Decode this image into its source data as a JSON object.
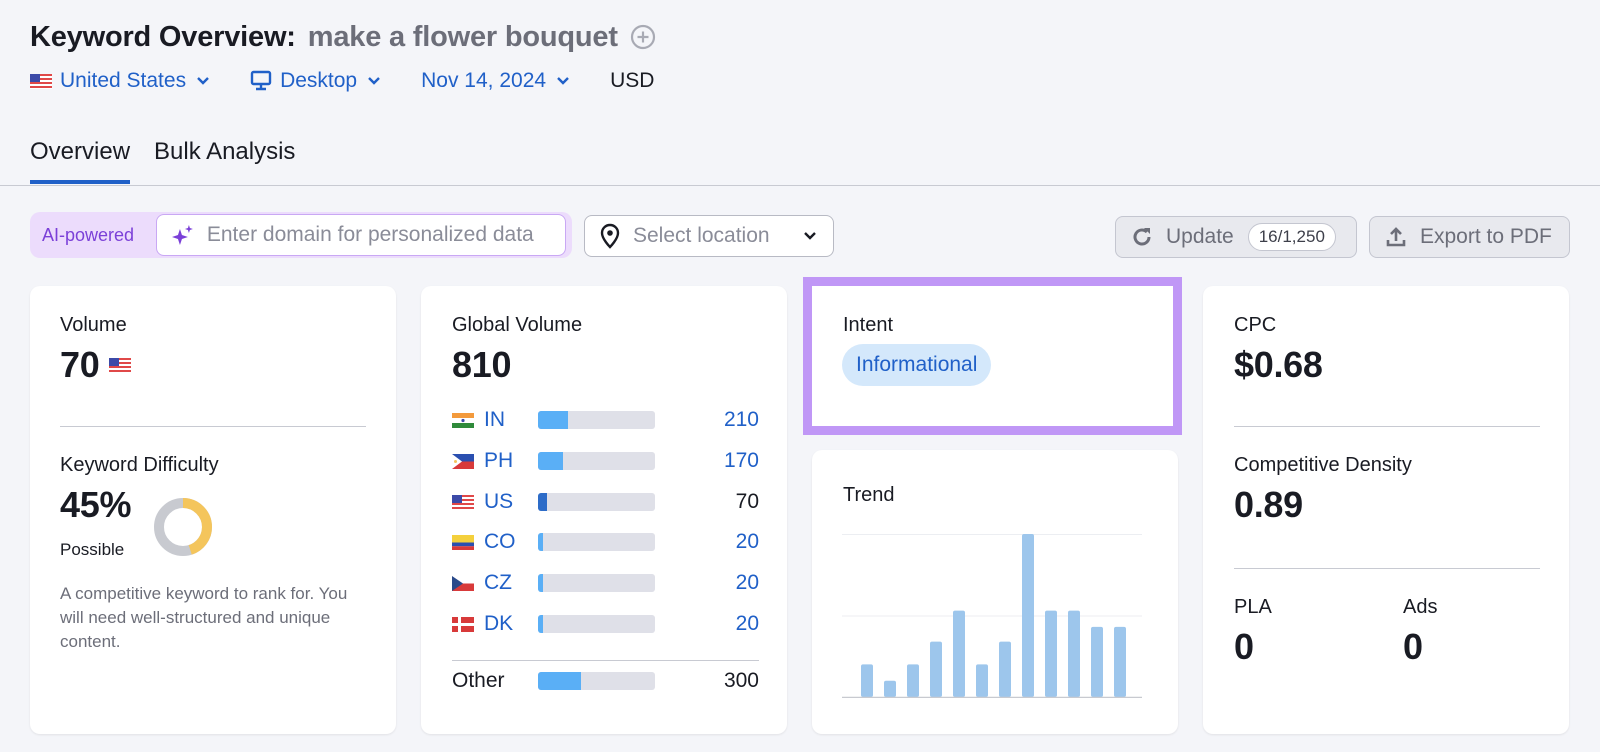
{
  "header": {
    "title": "Keyword Overview:",
    "keyword": "make a flower bouquet",
    "filters": {
      "country": "United States",
      "device": "Desktop",
      "date": "Nov 14, 2024",
      "currency": "USD"
    }
  },
  "tabs": [
    {
      "label": "Overview",
      "active": true
    },
    {
      "label": "Bulk Analysis",
      "active": false
    }
  ],
  "toolbar": {
    "ai_label": "AI-powered",
    "domain_placeholder": "Enter domain for personalized data",
    "location_placeholder": "Select location",
    "update_label": "Update",
    "update_counter": "16/1,250",
    "export_label": "Export to PDF"
  },
  "volume": {
    "label": "Volume",
    "value": "70",
    "country_flag": "us-flag-icon"
  },
  "keyword_difficulty": {
    "label": "Keyword Difficulty",
    "value": "45%",
    "rating": "Possible",
    "percent": 45,
    "description": "A competitive keyword to rank for. You will need well-structured and unique content.",
    "colors": {
      "fill": "#f4c55c",
      "track": "#c8cad0"
    }
  },
  "global_volume": {
    "label": "Global Volume",
    "value": "810",
    "countries": [
      {
        "code": "IN",
        "value": "210",
        "fill_pct": 26,
        "link": true
      },
      {
        "code": "PH",
        "value": "170",
        "fill_pct": 21,
        "link": true
      },
      {
        "code": "US",
        "value": "70",
        "fill_pct": 8,
        "link": false
      },
      {
        "code": "CO",
        "value": "20",
        "fill_pct": 4,
        "link": true
      },
      {
        "code": "CZ",
        "value": "20",
        "fill_pct": 4,
        "link": true
      },
      {
        "code": "DK",
        "value": "20",
        "fill_pct": 4,
        "link": true
      }
    ],
    "other": {
      "label": "Other",
      "value": "300",
      "fill_pct": 37
    }
  },
  "intent": {
    "label": "Intent",
    "value": "Informational"
  },
  "trend": {
    "label": "Trend"
  },
  "cpc": {
    "label": "CPC",
    "value": "$0.68"
  },
  "competitive_density": {
    "label": "Competitive Density",
    "value": "0.89"
  },
  "pla": {
    "label": "PLA",
    "value": "0"
  },
  "ads": {
    "label": "Ads",
    "value": "0"
  },
  "chart_data": {
    "type": "bar",
    "title": "Trend",
    "categories": [
      "1",
      "2",
      "3",
      "4",
      "5",
      "6",
      "7",
      "8",
      "9",
      "10",
      "11",
      "12"
    ],
    "values": [
      0.2,
      0.1,
      0.2,
      0.34,
      0.53,
      0.2,
      0.34,
      1.0,
      0.53,
      0.53,
      0.43,
      0.43
    ],
    "xlabel": "",
    "ylabel": "",
    "ylim": [
      0,
      1
    ],
    "grid": true,
    "bar_color": "#9dc6ec"
  },
  "colors": {
    "accent": "#2060c8",
    "highlight_border": "#c097f6",
    "ai_bg": "#ecdcfc",
    "bar_fill": "#5aaff6"
  }
}
